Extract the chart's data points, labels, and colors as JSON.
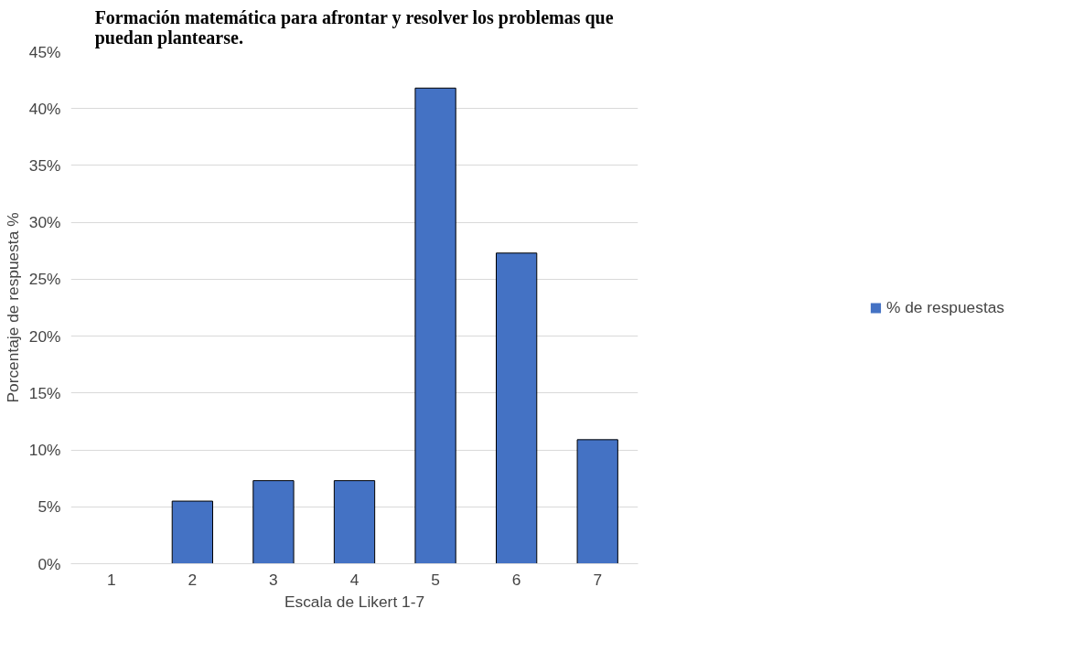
{
  "chart_data": {
    "type": "bar",
    "title": "Formación matemática para afrontar y resolver los problemas que\npuedan plantearse.",
    "xlabel": "Escala de Likert 1-7",
    "ylabel": "Porcentaje de respuesta %",
    "categories": [
      "1",
      "2",
      "3",
      "4",
      "5",
      "6",
      "7"
    ],
    "series": [
      {
        "name": "% de respuestas",
        "color": "#4472c4",
        "values": [
          0,
          5.5,
          7.3,
          7.3,
          41.8,
          27.3,
          10.9
        ]
      }
    ],
    "ylim": [
      0,
      45
    ],
    "yticks": [
      {
        "value": 0,
        "label": "0%"
      },
      {
        "value": 5,
        "label": "5%"
      },
      {
        "value": 10,
        "label": "10%"
      },
      {
        "value": 15,
        "label": "15%"
      },
      {
        "value": 20,
        "label": "20%"
      },
      {
        "value": 25,
        "label": "25%"
      },
      {
        "value": 30,
        "label": "30%"
      },
      {
        "value": 35,
        "label": "35%"
      },
      {
        "value": 40,
        "label": "40%"
      },
      {
        "value": 45,
        "label": "45%"
      }
    ],
    "grid": "y",
    "legend": "right"
  }
}
